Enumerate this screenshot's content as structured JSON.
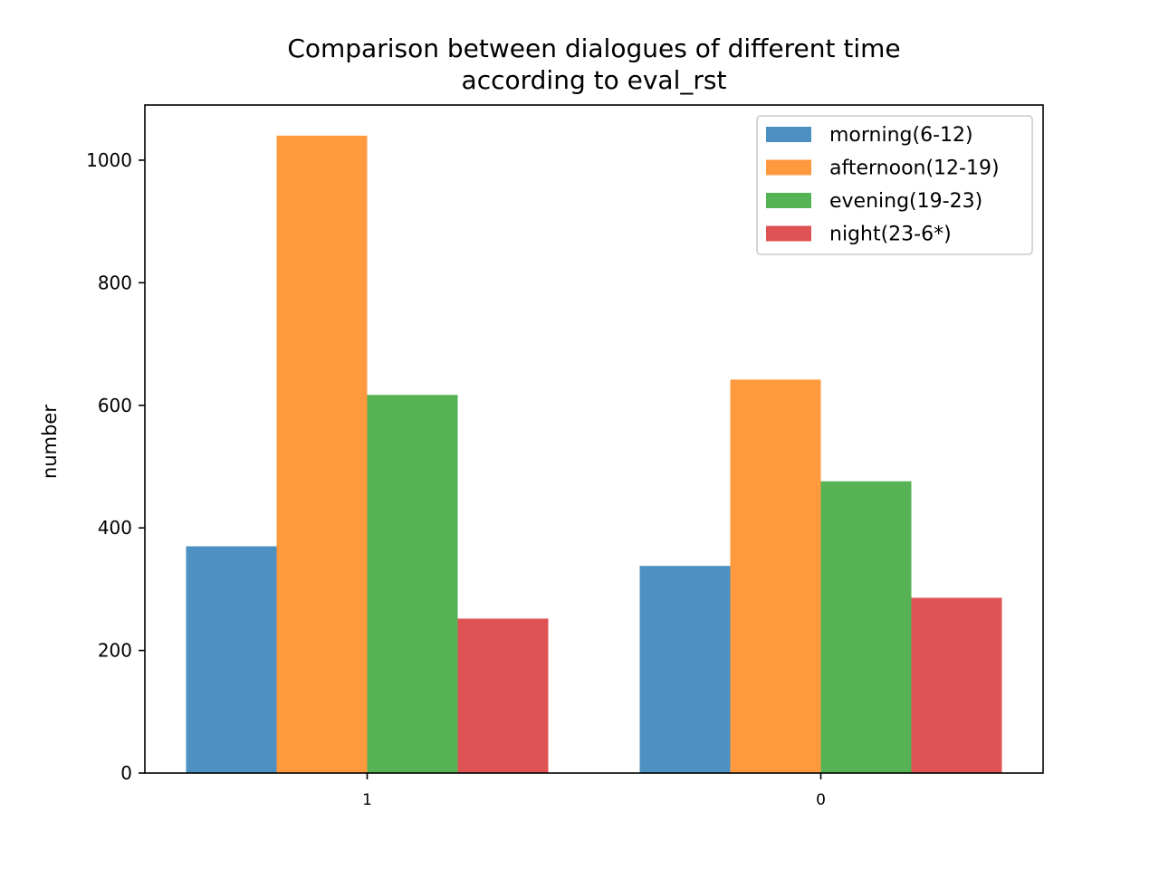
{
  "chart_data": {
    "type": "bar",
    "title_lines": [
      "Comparison between dialogues of different time",
      "according to eval_rst"
    ],
    "xlabel": "",
    "ylabel": "number",
    "categories": [
      "1",
      "0"
    ],
    "series": [
      {
        "name": "morning(6-12)",
        "values": [
          370,
          338
        ],
        "color": "#4c91c2"
      },
      {
        "name": "afternoon(12-19)",
        "values": [
          1040,
          642
        ],
        "color": "#ff993e"
      },
      {
        "name": "evening(19-23)",
        "values": [
          617,
          476
        ],
        "color": "#55b255"
      },
      {
        "name": "night(23-6*)",
        "values": [
          252,
          286
        ],
        "color": "#df5254"
      }
    ],
    "ylim": [
      0,
      1090
    ],
    "yticks": [
      0,
      200,
      400,
      600,
      800,
      1000
    ],
    "legend_position": "top-right",
    "grid": false
  }
}
